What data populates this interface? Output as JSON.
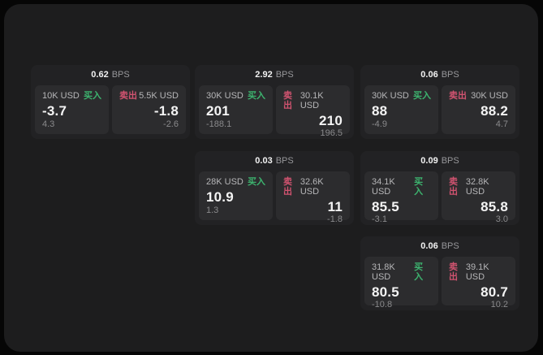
{
  "labels": {
    "bps": "BPS",
    "buy": "买入",
    "sell": "卖出"
  },
  "colors": {
    "buy_green": "#3db46f",
    "sell_red": "#d15370",
    "panel_bg": "#1d1d1e",
    "card_bg": "#222224",
    "tile_bg": "#2c2c2e"
  },
  "cards": [
    {
      "bps": "0.62",
      "buy": {
        "notional": "10K USD",
        "price": "-3.7",
        "delta": "4.3"
      },
      "sell": {
        "notional": "5.5K USD",
        "price": "-1.8",
        "delta": "-2.6"
      }
    },
    {
      "bps": "2.92",
      "buy": {
        "notional": "30K USD",
        "price": "201",
        "delta": "-188.1"
      },
      "sell": {
        "notional": "30.1K USD",
        "price": "210",
        "delta": "196.5"
      }
    },
    {
      "bps": "0.06",
      "buy": {
        "notional": "30K USD",
        "price": "88",
        "delta": "-4.9"
      },
      "sell": {
        "notional": "30K USD",
        "price": "88.2",
        "delta": "4.7"
      }
    },
    {
      "bps": "0.03",
      "buy": {
        "notional": "28K USD",
        "price": "10.9",
        "delta": "1.3"
      },
      "sell": {
        "notional": "32.6K USD",
        "price": "11",
        "delta": "-1.8"
      }
    },
    {
      "bps": "0.09",
      "buy": {
        "notional": "34.1K USD",
        "price": "85.5",
        "delta": "-3.1"
      },
      "sell": {
        "notional": "32.8K USD",
        "price": "85.8",
        "delta": "3.0"
      }
    },
    {
      "bps": "0.06",
      "buy": {
        "notional": "31.8K USD",
        "price": "80.5",
        "delta": "-10.8"
      },
      "sell": {
        "notional": "39.1K USD",
        "price": "80.7",
        "delta": "10.2"
      }
    }
  ]
}
